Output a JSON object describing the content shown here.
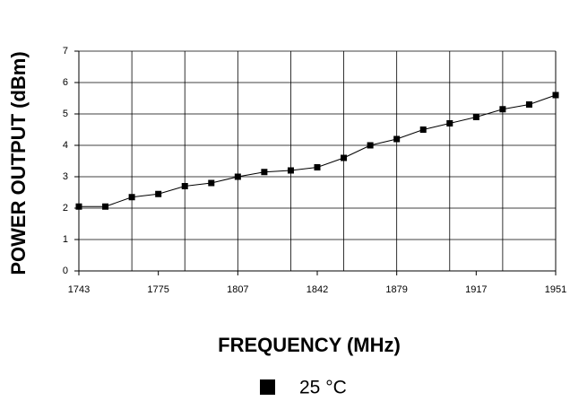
{
  "chart_data": {
    "type": "line",
    "xlabel": "FREQUENCY (MHz)",
    "ylabel": "POWER OUTPUT (dBm)",
    "categories": [
      "1743",
      null,
      null,
      "1775",
      null,
      null,
      "1807",
      null,
      null,
      "1842",
      null,
      null,
      "1879",
      null,
      null,
      "1917",
      null,
      null,
      "1951"
    ],
    "series": [
      {
        "name": "25 °C",
        "color": "#000000",
        "values": [
          2.05,
          2.05,
          2.35,
          2.45,
          2.7,
          2.8,
          3.0,
          3.15,
          3.2,
          3.3,
          3.6,
          4.0,
          4.2,
          4.5,
          4.7,
          4.9,
          5.15,
          5.3,
          5.6
        ]
      }
    ],
    "ylim": [
      0,
      7
    ],
    "yticks": [
      0,
      1,
      2,
      3,
      4,
      5,
      6,
      7
    ],
    "grid": true
  }
}
